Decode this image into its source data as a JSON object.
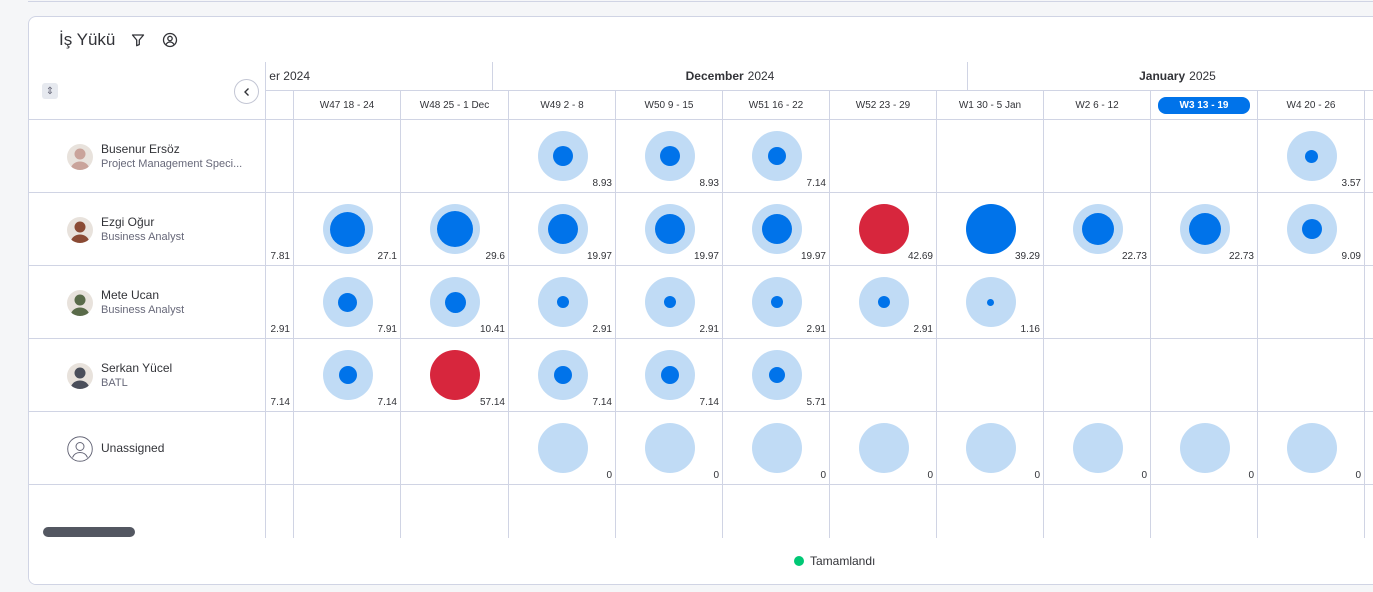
{
  "title": "İş Yükü",
  "toolbar": {
    "filter_icon": "filter-icon",
    "person_icon": "person-icon"
  },
  "months": [
    {
      "bold": "",
      "label": "er 2024"
    },
    {
      "bold": "December",
      "label": "2024"
    },
    {
      "bold": "January",
      "label": "2025"
    }
  ],
  "weeks": [
    "",
    "W47 18 - 24",
    "W48 25 - 1 Dec",
    "W49 2 - 8",
    "W50 9 - 15",
    "W51 16 - 22",
    "W52 23 - 29",
    "W1 30 - 5 Jan",
    "W2 6 - 12",
    "W3 13 - 19",
    "W4 20 - 26",
    ""
  ],
  "active_week_index": 9,
  "people": [
    {
      "name": "Busenur Ersöz",
      "role": "Project Management Speci...",
      "avatar_color": "#c9a39a",
      "cells": [
        null,
        null,
        null,
        {
          "v": "8.93",
          "l": 0.22
        },
        {
          "v": "8.93",
          "l": 0.22
        },
        {
          "v": "7.14",
          "l": 0.18
        },
        null,
        null,
        null,
        null,
        {
          "v": "3.57",
          "l": 0.1
        },
        null
      ]
    },
    {
      "name": "Ezgi Oğur",
      "role": "Business Analyst",
      "avatar_color": "#8a4a34",
      "cells": [
        {
          "v": "7.81"
        },
        {
          "v": "27.1",
          "l": 0.68
        },
        {
          "v": "29.6",
          "l": 0.74
        },
        {
          "v": "19.97",
          "l": 0.5
        },
        {
          "v": "19.97",
          "l": 0.5
        },
        {
          "v": "19.97",
          "l": 0.5
        },
        {
          "v": "42.69",
          "l": 1.1
        },
        {
          "v": "39.29",
          "l": 1.0
        },
        {
          "v": "22.73",
          "l": 0.57
        },
        {
          "v": "22.73",
          "l": 0.57
        },
        {
          "v": "9.09",
          "l": 0.23
        },
        null
      ]
    },
    {
      "name": "Mete Ucan",
      "role": "Business Analyst",
      "avatar_color": "#5a6b4a",
      "cells": [
        {
          "v": "2.91"
        },
        {
          "v": "7.91",
          "l": 0.2
        },
        {
          "v": "10.41",
          "l": 0.26
        },
        {
          "v": "2.91",
          "l": 0.08
        },
        {
          "v": "2.91",
          "l": 0.08
        },
        {
          "v": "2.91",
          "l": 0.08
        },
        {
          "v": "2.91",
          "l": 0.08
        },
        {
          "v": "1.16",
          "l": 0.03
        },
        null,
        null,
        null,
        null
      ]
    },
    {
      "name": "Serkan Yücel",
      "role": "BATL",
      "avatar_color": "#4a4e5a",
      "cells": [
        {
          "v": "7.14"
        },
        {
          "v": "7.14",
          "l": 0.18
        },
        {
          "v": "57.14",
          "l": 1.4
        },
        {
          "v": "7.14",
          "l": 0.18
        },
        {
          "v": "7.14",
          "l": 0.18
        },
        {
          "v": "5.71",
          "l": 0.15
        },
        null,
        null,
        null,
        null,
        null,
        null
      ]
    },
    {
      "name": "Unassigned",
      "role": "",
      "avatar_color": "",
      "cells": [
        null,
        null,
        null,
        {
          "v": "0",
          "l": 0
        },
        {
          "v": "0",
          "l": 0
        },
        {
          "v": "0",
          "l": 0
        },
        {
          "v": "0",
          "l": 0
        },
        {
          "v": "0",
          "l": 0
        },
        {
          "v": "0",
          "l": 0
        },
        {
          "v": "0",
          "l": 0
        },
        {
          "v": "0",
          "l": 0
        },
        null
      ]
    }
  ],
  "legend": {
    "label": "Tamamlandı",
    "color": "#00c875"
  }
}
